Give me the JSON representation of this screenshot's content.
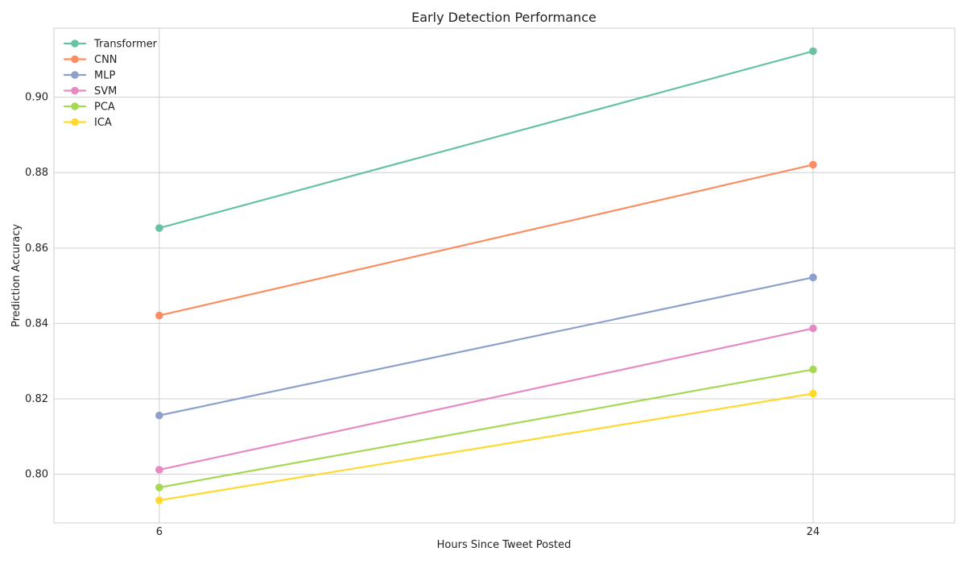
{
  "chart_data": {
    "type": "line",
    "title": "Early Detection Performance",
    "xlabel": "Hours Since Tweet Posted",
    "ylabel": "Prediction Accuracy",
    "x": [
      6,
      24
    ],
    "xlim": [
      3.1,
      27.9
    ],
    "ylim": [
      0.7871,
      0.9183
    ],
    "yticks": [
      0.8,
      0.82,
      0.84,
      0.86,
      0.88,
      0.9
    ],
    "ytick_labels": [
      "0.80",
      "0.82",
      "0.84",
      "0.86",
      "0.88",
      "0.90"
    ],
    "xticks": [
      6,
      24
    ],
    "xtick_labels": [
      "6",
      "24"
    ],
    "grid": true,
    "legend": "top-left",
    "series": [
      {
        "name": "Transformer",
        "values": [
          0.8653,
          0.9122
        ],
        "color": "#66c2a5"
      },
      {
        "name": "CNN",
        "values": [
          0.8421,
          0.8821
        ],
        "color": "#fc8d62"
      },
      {
        "name": "MLP",
        "values": [
          0.8156,
          0.8522
        ],
        "color": "#8da0cb"
      },
      {
        "name": "SVM",
        "values": [
          0.8012,
          0.8387
        ],
        "color": "#e78ac3"
      },
      {
        "name": "PCA",
        "values": [
          0.7965,
          0.8278
        ],
        "color": "#a6d854"
      },
      {
        "name": "ICA",
        "values": [
          0.7931,
          0.8214
        ],
        "color": "#ffd92f"
      }
    ]
  }
}
